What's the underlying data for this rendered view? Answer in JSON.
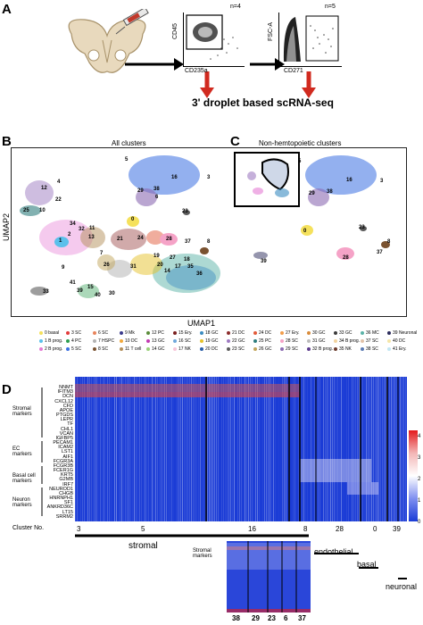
{
  "panels": {
    "a": "A",
    "b": "B",
    "c": "C",
    "d": "D"
  },
  "panel_a": {
    "facs1_n": "n=4",
    "facs2_n": "n=5",
    "facs1_y": "CD45",
    "facs1_x": "CD235a",
    "facs2_y": "FSC-A",
    "facs2_x": "CD271",
    "method": "3' droplet based scRNA-seq"
  },
  "panel_b": {
    "title": "All clusters",
    "ylabel": "UMAP2",
    "xlabel": "UMAP1",
    "cluster_labels": [
      "5",
      "16",
      "3",
      "29",
      "38",
      "12",
      "4",
      "22",
      "25",
      "10",
      "34",
      "32",
      "2",
      "11",
      "1",
      "13",
      "21",
      "24",
      "28",
      "37",
      "8",
      "23",
      "6",
      "0",
      "7",
      "26",
      "31",
      "19",
      "20",
      "36",
      "18",
      "35",
      "27",
      "9",
      "14",
      "17",
      "41",
      "33",
      "40",
      "39",
      "15",
      "30"
    ]
  },
  "panel_c": {
    "title": "Non-hemtopoietic clusters",
    "cluster_labels": [
      "5",
      "16",
      "3",
      "29",
      "38",
      "23",
      "28",
      "37",
      "8",
      "0",
      "39"
    ]
  },
  "legend": [
    {
      "label": "0 basal",
      "color": "#f5e15c"
    },
    {
      "label": "1 B prog.",
      "color": "#5bc0eb"
    },
    {
      "label": "2 B prog.",
      "color": "#e57bd4"
    },
    {
      "label": "3 SC",
      "color": "#e23b3b"
    },
    {
      "label": "4 PC",
      "color": "#2e9e4f"
    },
    {
      "label": "5 SC",
      "color": "#3b6fe2"
    },
    {
      "label": "6 SC",
      "color": "#e8845c"
    },
    {
      "label": "7 HSPC",
      "color": "#b3b3b3"
    },
    {
      "label": "8 SC",
      "color": "#7a5230"
    },
    {
      "label": "9 Mk",
      "color": "#3a3a8c"
    },
    {
      "label": "10 DC",
      "color": "#f2a93b"
    },
    {
      "label": "11 T cell",
      "color": "#b38f5a"
    },
    {
      "label": "12 PC",
      "color": "#5b8c3a"
    },
    {
      "label": "13 GC",
      "color": "#c23bb3"
    },
    {
      "label": "14 GC",
      "color": "#9ad17a"
    },
    {
      "label": "15 Ery.",
      "color": "#7a1f1f"
    },
    {
      "label": "16 SC",
      "color": "#6fa8dc"
    },
    {
      "label": "17 NK",
      "color": "#f7c6d9"
    },
    {
      "label": "18 GC",
      "color": "#3b8cc2"
    },
    {
      "label": "19 GC",
      "color": "#e6c229"
    },
    {
      "label": "20 DC",
      "color": "#2b5fa8"
    },
    {
      "label": "21 DC",
      "color": "#8c2b2b"
    },
    {
      "label": "22 GC",
      "color": "#9e7bc2"
    },
    {
      "label": "23 SC",
      "color": "#5a5a5a"
    },
    {
      "label": "24 DC",
      "color": "#e25b3b"
    },
    {
      "label": "25 PC",
      "color": "#2e7d7d"
    },
    {
      "label": "26 GC",
      "color": "#c2a55b"
    },
    {
      "label": "27 Ery.",
      "color": "#f29e4c"
    },
    {
      "label": "28 SC",
      "color": "#f5a3c7"
    },
    {
      "label": "29 SC",
      "color": "#8c6bb3"
    },
    {
      "label": "30 GC",
      "color": "#d98c3b"
    },
    {
      "label": "31 GC",
      "color": "#bcbcbc"
    },
    {
      "label": "32 B prog.",
      "color": "#5c3b8c"
    },
    {
      "label": "33 GC",
      "color": "#3b3b3b"
    },
    {
      "label": "34 B prog.",
      "color": "#f2d39e"
    },
    {
      "label": "35 NK",
      "color": "#6b3b2b"
    },
    {
      "label": "36 MC",
      "color": "#5bb3a8"
    },
    {
      "label": "37 SC",
      "color": "#e2c2a8"
    },
    {
      "label": "38 SC",
      "color": "#5b7bb3"
    },
    {
      "label": "39 Neuronal",
      "color": "#2b2b5c"
    },
    {
      "label": "40 DC",
      "color": "#f5e6a8"
    },
    {
      "label": "41 Ery.",
      "color": "#c2e6f2"
    }
  ],
  "panel_d": {
    "genes": [
      "NNMT",
      "IFITM3",
      "DCN",
      "CXCL12",
      "CFD",
      "APOE",
      "PTGDS",
      "LEPR",
      "TF",
      "CHL1",
      "VCAN",
      "IGFBP5",
      "PECAM1",
      "ICAM2",
      "LST1",
      "AIF1",
      "FCGR3A",
      "FCGR3B",
      "FCER1G",
      "KRT5",
      "G2MB",
      "IRF7",
      "NEUROD1",
      "CHGB",
      "HNRNPH1",
      "SF1",
      "ANKRD36C",
      "LT15",
      "SRRM2"
    ],
    "groups": [
      {
        "label": "Stromal\nmarkers"
      },
      {
        "label": "EC\nmarkers"
      },
      {
        "label": "Basal cell\nmarkers"
      },
      {
        "label": "Neuron\nmarkers"
      }
    ],
    "cluster_no_label": "Cluster No.",
    "clusters": [
      "3",
      "5",
      "16",
      "8",
      "28",
      "0",
      "39"
    ],
    "colorbar_ticks": [
      "4",
      "3",
      "2",
      "1",
      "0"
    ],
    "cell_types": [
      "stromal",
      "endothelial",
      "basal",
      "neuronal"
    ],
    "inset_label": "Stromal\nmarkers",
    "inset_clusters": [
      "38",
      "29",
      "23",
      "6",
      "37"
    ]
  }
}
